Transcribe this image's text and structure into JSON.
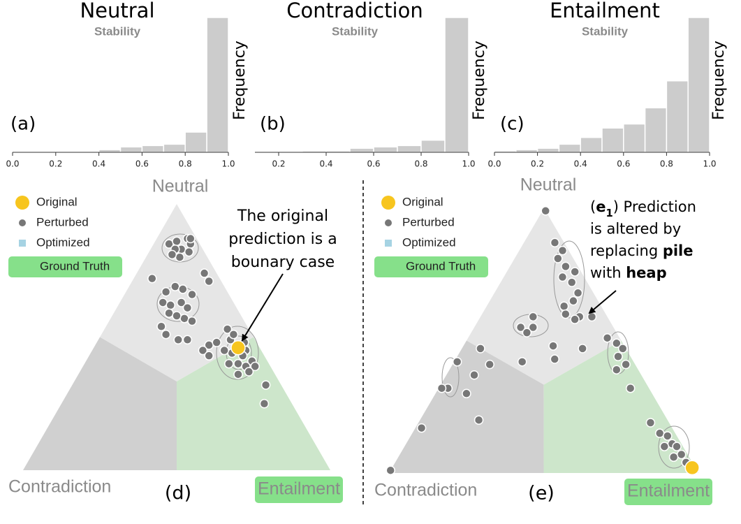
{
  "chart_data": [
    {
      "type": "histogram",
      "title": "Neutral",
      "subtitle": "Stability",
      "ylabel": "Frequency",
      "label": "(a)",
      "bins": [
        0,
        0.1,
        0.2,
        0.3,
        0.4,
        0.5,
        0.6,
        0.7,
        0.8,
        0.9,
        1.0
      ],
      "values": [
        0,
        0,
        0,
        0,
        2,
        4,
        5,
        6,
        15,
        100
      ],
      "color": "#cccccc",
      "xlim": [
        0,
        1
      ],
      "xticks": [
        {
          "value": 0,
          "label": "0.0"
        },
        0.2,
        0.4,
        0.6,
        0.8,
        {
          "value": 1,
          "label": "1.0"
        }
      ],
      "ylim": [
        0,
        100
      ]
    },
    {
      "type": "histogram",
      "title": "Contradiction",
      "subtitle": "Stability",
      "ylabel": "Frequency",
      "label": "(b)",
      "bins": [
        0.1,
        0.2,
        0.3,
        0.4,
        0.5,
        0.6,
        0.7,
        0.8,
        0.9,
        1.0
      ],
      "values": [
        0,
        0,
        1,
        1,
        3,
        4,
        5,
        9,
        100
      ],
      "color": "#cccccc",
      "xlim": [
        0.1,
        1
      ],
      "xticks": [
        0.2,
        0.4,
        0.6,
        0.8,
        {
          "value": 1,
          "label": "1.0"
        }
      ],
      "ylim": [
        0,
        100
      ]
    },
    {
      "type": "histogram",
      "title": "Entailment",
      "subtitle": "Stability",
      "ylabel": "Frequency",
      "label": "(c)",
      "bins": [
        0,
        0.1,
        0.2,
        0.3,
        0.4,
        0.5,
        0.6,
        0.7,
        0.8,
        0.9,
        1.0
      ],
      "values": [
        1,
        2,
        3,
        6,
        11,
        18,
        21,
        33,
        53,
        100
      ],
      "color": "#cccccc",
      "xlim": [
        0,
        1
      ],
      "xticks": [
        {
          "value": 0,
          "label": "0.0"
        },
        0.2,
        0.4,
        0.6,
        0.8,
        {
          "value": 1,
          "label": "1.0"
        }
      ],
      "ylim": [
        0,
        100
      ]
    },
    {
      "type": "ternary",
      "label": "(d)",
      "vertex_labels": [
        "Neutral",
        "Contradiction",
        "Entailment"
      ],
      "region_colors": [
        "#e6e6e6",
        "#d0d0d0",
        "#cde6cb"
      ],
      "series": [
        {
          "name": "Original",
          "color": "#f7c51e",
          "marker": "circle",
          "values": [
            [
              0.46,
              0.47
            ]
          ]
        },
        {
          "name": "Perturbed",
          "color": "#777777",
          "marker": "dot",
          "values": [
            [
              0.85,
              0.05
            ],
            [
              0.86,
              0.07
            ],
            [
              0.87,
              0.1
            ],
            [
              0.85,
              0.12
            ],
            [
              0.83,
              0.1
            ],
            [
              0.83,
              0.08
            ],
            [
              0.82,
              0.13
            ],
            [
              0.8,
              0.11
            ],
            [
              0.81,
              0.08
            ],
            [
              0.87,
              0.11
            ],
            [
              0.72,
              0.06
            ],
            [
              0.74,
              0.22
            ],
            [
              0.71,
              0.25
            ],
            [
              0.67,
              0.13
            ],
            [
              0.69,
              0.15
            ],
            [
              0.68,
              0.18
            ],
            [
              0.66,
              0.22
            ],
            [
              0.63,
              0.14
            ],
            [
              0.62,
              0.17
            ],
            [
              0.63,
              0.2
            ],
            [
              0.61,
              0.23
            ],
            [
              0.59,
              0.18
            ],
            [
              0.57,
              0.24
            ],
            [
              0.56,
              0.27
            ],
            [
              0.58,
              0.21
            ],
            [
              0.54,
              0.18
            ],
            [
              0.51,
              0.21
            ],
            [
              0.49,
              0.26
            ],
            [
              0.49,
              0.29
            ],
            [
              0.47,
              0.37
            ],
            [
              0.48,
              0.39
            ],
            [
              0.45,
              0.36
            ],
            [
              0.53,
              0.4
            ],
            [
              0.49,
              0.43
            ],
            [
              0.51,
              0.43
            ],
            [
              0.48,
              0.48
            ],
            [
              0.45,
              0.5
            ],
            [
              0.44,
              0.46
            ],
            [
              0.43,
              0.5
            ],
            [
              0.41,
              0.54
            ],
            [
              0.4,
              0.5
            ],
            [
              0.4,
              0.47
            ],
            [
              0.39,
              0.53
            ],
            [
              0.39,
              0.56
            ],
            [
              0.36,
              0.52
            ],
            [
              0.37,
              0.55
            ],
            [
              0.43,
              0.39
            ],
            [
              0.45,
              0.43
            ],
            [
              0.32,
              0.63
            ],
            [
              0.25,
              0.66
            ]
          ]
        },
        {
          "name": "Optimized",
          "color": "#a6d3e3",
          "marker": "square",
          "values": []
        }
      ],
      "ground_truth": {
        "name": "Ground Truth",
        "color": "#86e08a",
        "vertex": 2
      },
      "annotation": {
        "lines": [
          [
            {
              "text": "The original"
            }
          ],
          [
            {
              "text": "prediction is a"
            }
          ],
          [
            {
              "text": "bounary case"
            }
          ]
        ]
      }
    },
    {
      "type": "ternary",
      "label": "(e)",
      "vertex_labels": [
        "Neutral",
        "Contradiction",
        "Entailment"
      ],
      "region_colors": [
        "#e6e6e6",
        "#d0d0d0",
        "#cde6cb"
      ],
      "series": [
        {
          "name": "Original",
          "color": "#f7c51e",
          "marker": "circle",
          "values": [
            [
              0.02,
              0.97
            ]
          ]
        },
        {
          "name": "Perturbed",
          "color": "#777777",
          "marker": "dot",
          "values": [
            [
              0.99,
              0.01
            ],
            [
              0.87,
              0.1
            ],
            [
              0.84,
              0.14
            ],
            [
              0.81,
              0.14
            ],
            [
              0.78,
              0.18
            ],
            [
              0.76,
              0.22
            ],
            [
              0.74,
              0.19
            ],
            [
              0.72,
              0.23
            ],
            [
              0.68,
              0.27
            ],
            [
              0.65,
              0.27
            ],
            [
              0.63,
              0.25
            ],
            [
              0.6,
              0.27
            ],
            [
              0.59,
              0.32
            ],
            [
              0.59,
              0.36
            ],
            [
              0.58,
              0.31
            ],
            [
              0.59,
              0.17
            ],
            [
              0.55,
              0.15
            ],
            [
              0.55,
              0.19
            ],
            [
              0.53,
              0.18
            ],
            [
              0.48,
              0.29
            ],
            [
              0.47,
              0.39
            ],
            [
              0.43,
              0.32
            ],
            [
              0.51,
              0.45
            ],
            [
              0.49,
              0.49
            ],
            [
              0.47,
              0.52
            ],
            [
              0.44,
              0.52
            ],
            [
              0.41,
              0.56
            ],
            [
              0.39,
              0.54
            ],
            [
              0.32,
              0.62
            ],
            [
              0.47,
              0.06
            ],
            [
              0.42,
              0.01
            ],
            [
              0.41,
              0.12
            ],
            [
              0.32,
              0.03
            ],
            [
              0.32,
              0.01
            ],
            [
              0.3,
              0.1
            ],
            [
              0.37,
              0.09
            ],
            [
              0.17,
              0.02
            ],
            [
              0.2,
              0.19
            ],
            [
              0.42,
              0.22
            ],
            [
              0.01,
              0
            ],
            [
              0.19,
              0.75
            ],
            [
              0.15,
              0.8
            ],
            [
              0.14,
              0.83
            ],
            [
              0.11,
              0.86
            ],
            [
              0.1,
              0.88
            ],
            [
              0.07,
              0.91
            ],
            [
              0.06,
              0.89
            ],
            [
              0.04,
              0.94
            ],
            [
              0.1,
              0.84
            ]
          ]
        },
        {
          "name": "Optimized",
          "color": "#a6d3e3",
          "marker": "square",
          "values": []
        }
      ],
      "ground_truth": {
        "name": "Ground Truth",
        "color": "#86e08a",
        "vertex": 2
      },
      "annotation": {
        "lines": [
          [
            {
              "text": "("
            },
            {
              "text": "e",
              "bold": true
            },
            {
              "text": "1",
              "bold": true,
              "sub": true
            },
            {
              "text": ") Prediction"
            }
          ],
          [
            {
              "text": "is altered by"
            }
          ],
          [
            {
              "text": "replacing "
            },
            {
              "text": "pile",
              "bold": true
            }
          ],
          [
            {
              "text": "with "
            },
            {
              "text": "heap",
              "bold": true
            }
          ]
        ]
      }
    }
  ]
}
